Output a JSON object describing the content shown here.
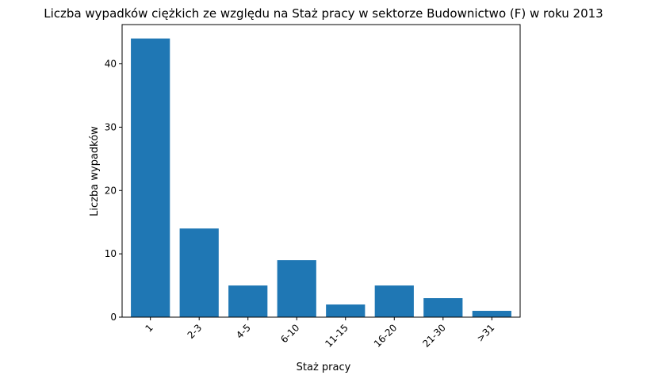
{
  "chart_data": {
    "type": "bar",
    "title": "Liczba wypadków ciężkich ze względu na Staż pracy w sektorze Budownictwo (F)   w roku 2013",
    "xlabel": "Staż pracy",
    "ylabel": "Liczba wypadków",
    "categories": [
      "1",
      "2-3",
      "4-5",
      "6-10",
      "11-15",
      "16-20",
      "21-30",
      ">31"
    ],
    "values": [
      44,
      14,
      5,
      9,
      2,
      5,
      3,
      1
    ],
    "ylim": [
      0,
      46.2
    ],
    "yticks": [
      0,
      10,
      20,
      30,
      40
    ],
    "bar_color": "#1f77b4",
    "grid": false,
    "legend": "none"
  }
}
